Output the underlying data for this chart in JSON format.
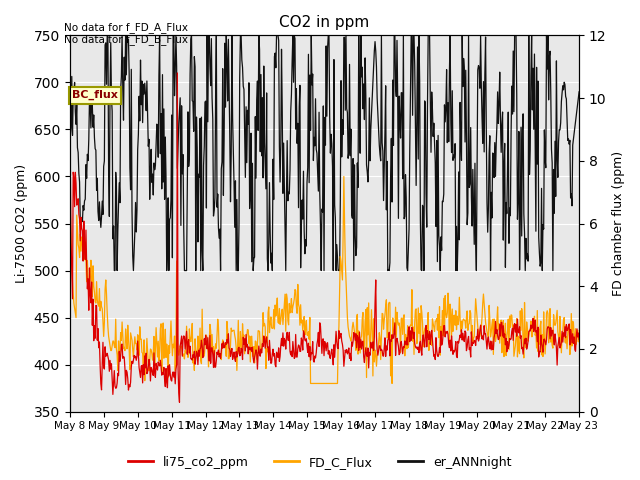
{
  "title": "CO2 in ppm",
  "ylabel_left": "Li-7500 CO2 (ppm)",
  "ylabel_right": "FD chamber flux (ppm)",
  "ylim_left": [
    350,
    750
  ],
  "ylim_right": [
    0,
    12
  ],
  "yticks_left": [
    350,
    400,
    450,
    500,
    550,
    600,
    650,
    700,
    750
  ],
  "yticks_right": [
    0,
    2,
    4,
    6,
    8,
    10,
    12
  ],
  "text_no_data_1": "No data for f_FD_A_Flux",
  "text_no_data_2": "No data for f_FD_B_Flux",
  "bc_flux_label": "BC_flux",
  "bg_color": "#e8e8e8",
  "line_colors": {
    "li75": "#dd0000",
    "fd_c": "#ffa500",
    "ann": "#111111"
  },
  "n_points": 720,
  "xticklabels": [
    "May 8",
    "May 9",
    "May 10",
    "May 11",
    "May 12",
    "May 13",
    "May 14",
    "May 15",
    "May 16",
    "May 17",
    "May 18",
    "May 19",
    "May 20",
    "May 21",
    "May 22",
    "May 23"
  ]
}
